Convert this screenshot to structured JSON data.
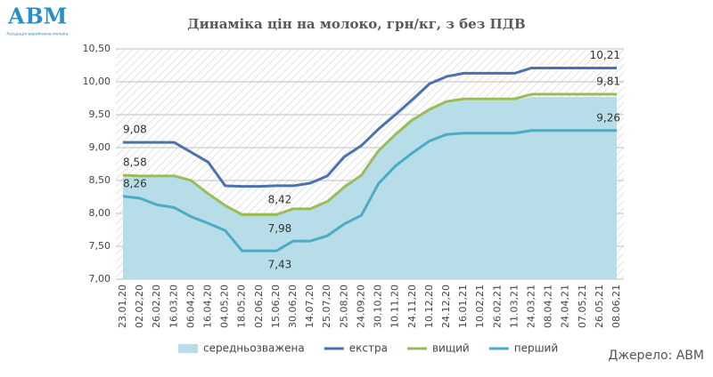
{
  "logo": {
    "text": "АВМ",
    "subtitle": "Асоціація виробників молока"
  },
  "source": "Джерело: АВМ",
  "chart_data": {
    "type": "line",
    "title": "Динаміка цін на молоко, грн/кг, з без ПДВ",
    "categories": [
      "23.01,20",
      "02.02,20",
      "26.02,20",
      "16.03,20",
      "06.04,20",
      "16.04,20",
      "04.05,20",
      "18.05,20",
      "02.06,20",
      "15.06,20",
      "30.06,20",
      "14.07,20",
      "25.07,20",
      "25.08,20",
      "24.09,20",
      "30.10,20",
      "10.11,20",
      "24.11,20",
      "10.12,20",
      "24.12,20",
      "16.01,21",
      "10.02,21",
      "26.02,21",
      "11.03,21",
      "24.03,21",
      "08.04,21",
      "24.04,21",
      "07.05,21",
      "26.05,21",
      "08.06,21"
    ],
    "ylim": [
      7,
      10.5
    ],
    "yticks": [
      {
        "value": 7,
        "label": "7,00"
      },
      {
        "value": 7.5,
        "label": "7,50"
      },
      {
        "value": 8,
        "label": "8,00"
      },
      {
        "value": 8.5,
        "label": "8,50"
      },
      {
        "value": 9,
        "label": "9,00"
      },
      {
        "value": 9.5,
        "label": "9,50"
      },
      {
        "value": 10,
        "label": "10,00"
      },
      {
        "value": 10.5,
        "label": "10,50"
      }
    ],
    "grid": true,
    "legend": "bottom",
    "series": [
      {
        "name": "середньозважена",
        "kind": "area",
        "color": "#b7dde8",
        "values": [
          8.55,
          8.55,
          8.55,
          8.55,
          8.48,
          8.28,
          8.1,
          7.96,
          7.96,
          7.96,
          8.05,
          8.05,
          8.16,
          8.38,
          8.56,
          8.93,
          9.18,
          9.4,
          9.56,
          9.68,
          9.72,
          9.72,
          9.72,
          9.72,
          9.77,
          9.77,
          9.77,
          9.77,
          9.77,
          9.77
        ]
      },
      {
        "name": "екстра",
        "kind": "line",
        "color": "#4a72b0",
        "values": [
          9.08,
          9.08,
          9.08,
          9.08,
          8.93,
          8.78,
          8.42,
          8.41,
          8.41,
          8.42,
          8.42,
          8.46,
          8.57,
          8.86,
          9.03,
          9.28,
          9.5,
          9.73,
          9.97,
          10.08,
          10.13,
          10.13,
          10.13,
          10.13,
          10.21,
          10.21,
          10.21,
          10.21,
          10.21,
          10.21
        ],
        "value_labels": [
          "9,08",
          null,
          null,
          null,
          null,
          null,
          null,
          null,
          null,
          "8,42",
          null,
          null,
          null,
          null,
          null,
          null,
          null,
          null,
          null,
          null,
          null,
          null,
          null,
          null,
          null,
          null,
          null,
          null,
          null,
          "10,21"
        ]
      },
      {
        "name": "вищий",
        "kind": "line",
        "color": "#9bbb59",
        "values": [
          8.58,
          8.57,
          8.57,
          8.57,
          8.5,
          8.3,
          8.12,
          7.98,
          7.98,
          7.98,
          8.07,
          8.07,
          8.18,
          8.4,
          8.58,
          8.95,
          9.2,
          9.42,
          9.58,
          9.7,
          9.74,
          9.74,
          9.74,
          9.74,
          9.81,
          9.81,
          9.81,
          9.81,
          9.81,
          9.81
        ],
        "value_labels": [
          "8,58",
          null,
          null,
          null,
          null,
          null,
          null,
          null,
          null,
          "7,98",
          null,
          null,
          null,
          null,
          null,
          null,
          null,
          null,
          null,
          null,
          null,
          null,
          null,
          null,
          null,
          null,
          null,
          null,
          null,
          "9,81"
        ]
      },
      {
        "name": "перший",
        "kind": "line",
        "color": "#4bacc6",
        "values": [
          8.26,
          8.23,
          8.13,
          8.09,
          7.95,
          7.85,
          7.74,
          7.43,
          7.43,
          7.43,
          7.58,
          7.58,
          7.66,
          7.84,
          7.97,
          8.45,
          8.72,
          8.92,
          9.1,
          9.2,
          9.22,
          9.22,
          9.22,
          9.22,
          9.26,
          9.26,
          9.26,
          9.26,
          9.26,
          9.26
        ],
        "value_labels": [
          "8,26",
          null,
          null,
          null,
          null,
          null,
          null,
          null,
          null,
          "7,43",
          null,
          null,
          null,
          null,
          null,
          null,
          null,
          null,
          null,
          null,
          null,
          null,
          null,
          null,
          null,
          null,
          null,
          null,
          null,
          "9,26"
        ]
      }
    ]
  }
}
